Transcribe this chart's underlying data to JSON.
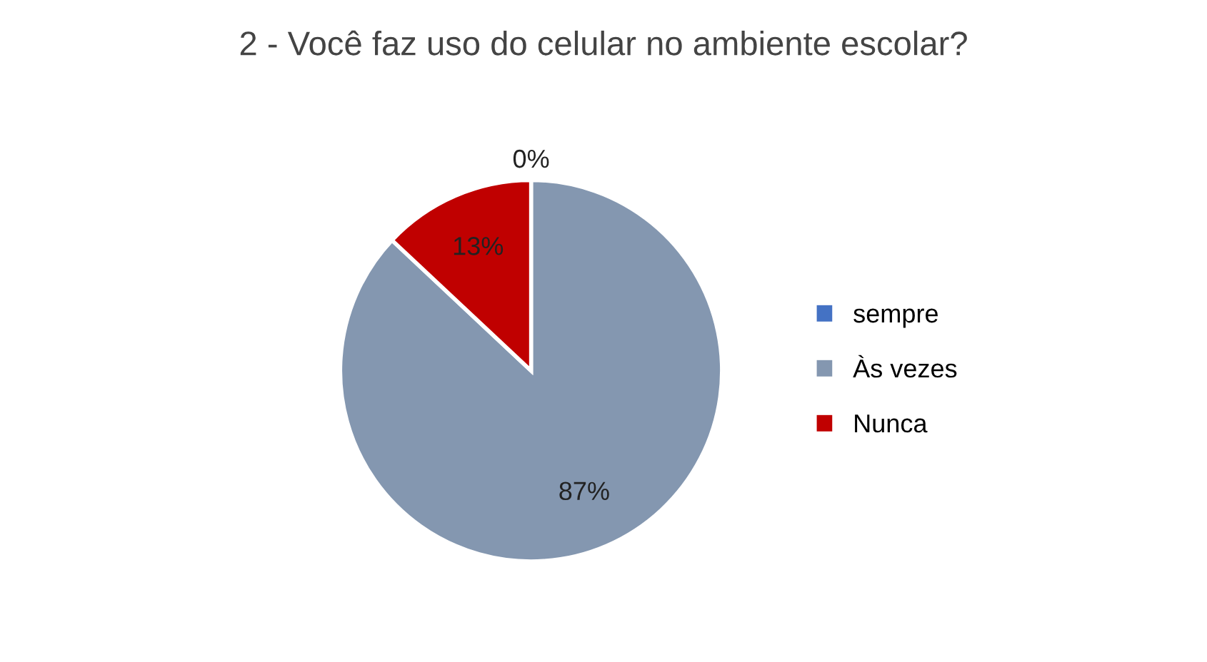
{
  "chart_data": {
    "type": "pie",
    "title": "2 - Você faz uso do celular no ambiente escolar?",
    "categories": [
      "sempre",
      "Às vezes",
      "Nunca"
    ],
    "values": [
      0,
      87,
      13
    ],
    "colors": [
      "#4472c4",
      "#8497b0",
      "#c00000"
    ],
    "value_labels": [
      "0%",
      "87%",
      "13%"
    ],
    "legend": "right"
  }
}
